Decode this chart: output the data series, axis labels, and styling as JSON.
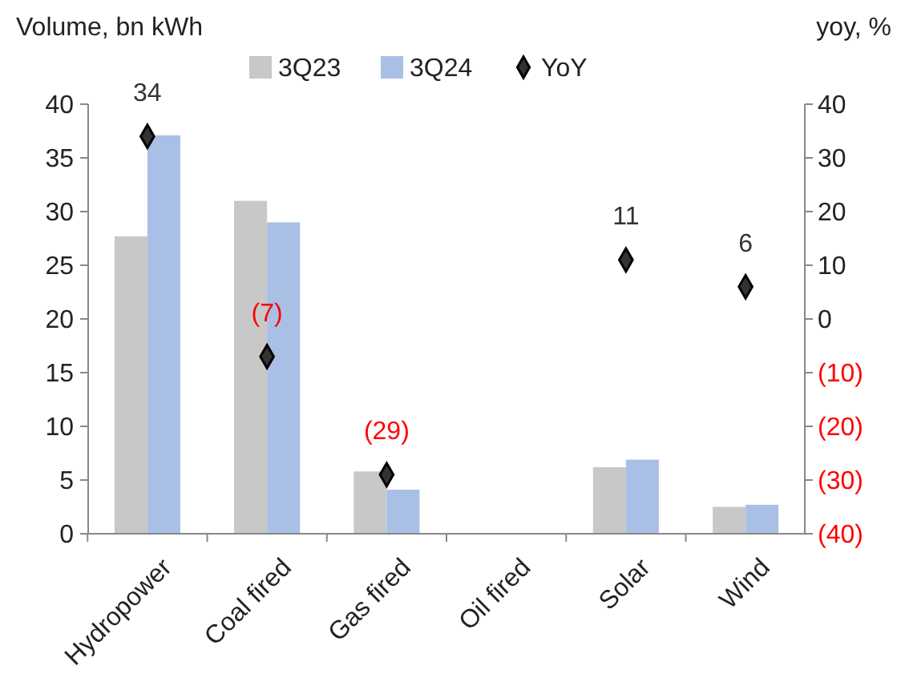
{
  "chart_data": {
    "type": "bar",
    "ylabel": "Volume, bn kWh",
    "y2label": "yoy, %",
    "categories": [
      "Hydropower",
      "Coal fired",
      "Gas fired",
      "Oil fired",
      "Solar",
      "Wind"
    ],
    "series": [
      {
        "name": "3Q23",
        "color": "#c8c8c8",
        "values": [
          27.7,
          31.0,
          5.8,
          0,
          6.2,
          2.5
        ]
      },
      {
        "name": "3Q24",
        "color": "#a9bfe6",
        "values": [
          37.1,
          29.0,
          4.1,
          0,
          6.9,
          2.7
        ]
      },
      {
        "name": "YoY",
        "type": "scatter",
        "axis": "y2",
        "marker": "diamond",
        "color": "#333333",
        "values": [
          34,
          -7,
          -29,
          null,
          11,
          6
        ],
        "value_labels": [
          "34",
          "(7)",
          "(29)",
          null,
          "11",
          "6"
        ]
      }
    ],
    "ylim": [
      0,
      40
    ],
    "yticks": [
      0,
      5,
      10,
      15,
      20,
      25,
      30,
      35,
      40
    ],
    "y2lim": [
      -40,
      40
    ],
    "y2ticks": [
      {
        "value": -40,
        "label": "(40)"
      },
      {
        "value": -30,
        "label": "(30)"
      },
      {
        "value": -20,
        "label": "(20)"
      },
      {
        "value": -10,
        "label": "(10)"
      },
      0,
      10,
      20,
      30,
      40
    ],
    "legend": "top",
    "grid": false
  }
}
